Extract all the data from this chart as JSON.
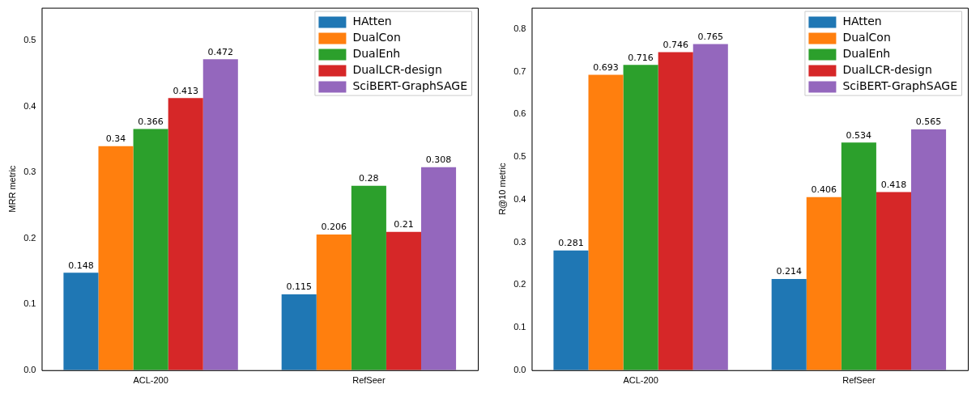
{
  "chart_data": [
    {
      "type": "bar",
      "ylabel": "MRR metric",
      "categories": [
        "ACL-200",
        "RefSeer"
      ],
      "series": [
        {
          "name": "HAtten",
          "color": "#1f77b4",
          "values": [
            0.148,
            0.115
          ]
        },
        {
          "name": "DualCon",
          "color": "#ff7f0e",
          "values": [
            0.34,
            0.206
          ]
        },
        {
          "name": "DualEnh",
          "color": "#2ca02c",
          "values": [
            0.366,
            0.28
          ]
        },
        {
          "name": "DualLCR-design",
          "color": "#d62728",
          "values": [
            0.413,
            0.21
          ]
        },
        {
          "name": "SciBERT-GraphSAGE",
          "color": "#9467bd",
          "values": [
            0.472,
            0.308
          ]
        }
      ],
      "ylim": [
        0,
        0.55
      ],
      "yticks": [
        {
          "value": 0,
          "label": "0.0"
        },
        0.1,
        0.2,
        0.3,
        0.4,
        0.5
      ],
      "data_labels": true,
      "legend": "top right",
      "grid": false
    },
    {
      "type": "bar",
      "ylabel": "R@10 metric",
      "categories": [
        "ACL-200",
        "RefSeer"
      ],
      "series": [
        {
          "name": "HAtten",
          "color": "#1f77b4",
          "values": [
            0.281,
            0.214
          ]
        },
        {
          "name": "DualCon",
          "color": "#ff7f0e",
          "values": [
            0.693,
            0.406
          ]
        },
        {
          "name": "DualEnh",
          "color": "#2ca02c",
          "values": [
            0.716,
            0.534
          ]
        },
        {
          "name": "DualLCR-design",
          "color": "#d62728",
          "values": [
            0.746,
            0.418
          ]
        },
        {
          "name": "SciBERT-GraphSAGE",
          "color": "#9467bd",
          "values": [
            0.765,
            0.565
          ]
        }
      ],
      "ylim": [
        0,
        0.85
      ],
      "yticks": [
        {
          "value": 0,
          "label": "0.0"
        },
        0.1,
        0.2,
        0.3,
        0.4,
        0.5,
        0.6,
        0.7,
        0.8
      ],
      "data_labels": true,
      "legend": "top right",
      "grid": false
    }
  ]
}
